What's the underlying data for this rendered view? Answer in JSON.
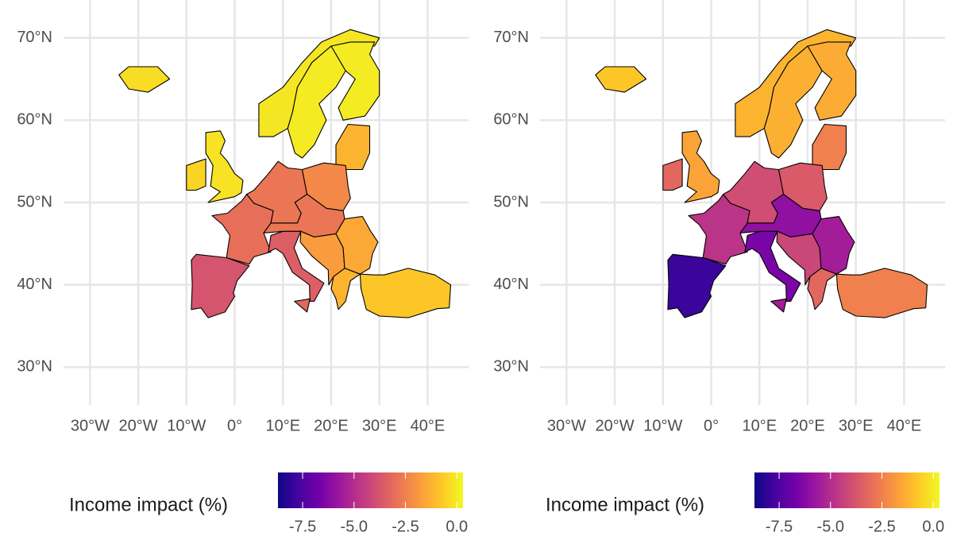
{
  "chart_data": [
    {
      "type": "map",
      "xlim": [
        -35.5,
        48.5
      ],
      "ylim": [
        25.4,
        74.6
      ],
      "xticks": [
        {
          "value": -30,
          "label": "30°W"
        },
        {
          "value": -20,
          "label": "20°W"
        },
        {
          "value": -10,
          "label": "10°W"
        },
        {
          "value": 0,
          "label": "0°"
        },
        {
          "value": 10,
          "label": "10°E"
        },
        {
          "value": 20,
          "label": "20°E"
        },
        {
          "value": 30,
          "label": "30°E"
        },
        {
          "value": 40,
          "label": "40°E"
        }
      ],
      "yticks": [
        {
          "value": 30,
          "label": "30°N"
        },
        {
          "value": 40,
          "label": "40°N"
        },
        {
          "value": 50,
          "label": "50°N"
        },
        {
          "value": 60,
          "label": "60°N"
        },
        {
          "value": 70,
          "label": "70°N"
        }
      ],
      "grid": true,
      "values": [
        -0.3,
        -0.1,
        0,
        0,
        -1.2,
        -0.5,
        -0.2,
        -3,
        -3.8,
        -2.8,
        -2.3,
        -2.8,
        -3.5,
        -3.2,
        -1.8,
        -1.5,
        -1.2,
        -0.8
      ],
      "legend_title": "Income impact (%)",
      "colorbar_lim": [
        -8.7,
        0.3
      ],
      "colorbar_ticks": [
        -7.5,
        {
          "value": -5,
          "label": "-5.0"
        },
        -2.5,
        {
          "value": 0,
          "label": "0.0"
        }
      ],
      "colormap": [
        "#0d0887",
        "#46039f",
        "#7201a8",
        "#9c179e",
        "#bd3786",
        "#d8576b",
        "#ed7953",
        "#fb9f3a",
        "#fdca26",
        "#f0f921"
      ]
    },
    {
      "type": "map",
      "xlim": [
        -35.5,
        48.5
      ],
      "ylim": [
        25.4,
        74.6
      ],
      "xticks": [
        {
          "value": -30,
          "label": "30°W"
        },
        {
          "value": -20,
          "label": "20°W"
        },
        {
          "value": -10,
          "label": "10°W"
        },
        {
          "value": 0,
          "label": "0°"
        },
        {
          "value": 10,
          "label": "10°E"
        },
        {
          "value": 20,
          "label": "20°E"
        },
        {
          "value": 30,
          "label": "30°E"
        },
        {
          "value": 40,
          "label": "40°E"
        }
      ],
      "yticks": [
        {
          "value": 30,
          "label": "30°N"
        },
        {
          "value": 40,
          "label": "40°N"
        },
        {
          "value": 50,
          "label": "50°N"
        },
        {
          "value": 60,
          "label": "60°N"
        },
        {
          "value": 70,
          "label": "70°N"
        }
      ],
      "grid": true,
      "values": [
        -0.8,
        -1.2,
        -1.3,
        -1.4,
        -2.5,
        -3.2,
        -1.6,
        -4.8,
        -7.9,
        -4,
        -3.6,
        -6,
        -6.5,
        -5.5,
        -4.2,
        -5.5,
        -3.2,
        -2.5
      ],
      "legend_title": "Income impact (%)",
      "colorbar_lim": [
        -8.7,
        0.3
      ],
      "colorbar_ticks": [
        -7.5,
        {
          "value": -5,
          "label": "-5.0"
        },
        -2.5,
        {
          "value": 0,
          "label": "0.0"
        }
      ],
      "colormap": [
        "#0d0887",
        "#46039f",
        "#7201a8",
        "#9c179e",
        "#bd3786",
        "#d8576b",
        "#ed7953",
        "#fb9f3a",
        "#fdca26",
        "#f0f921"
      ]
    }
  ]
}
